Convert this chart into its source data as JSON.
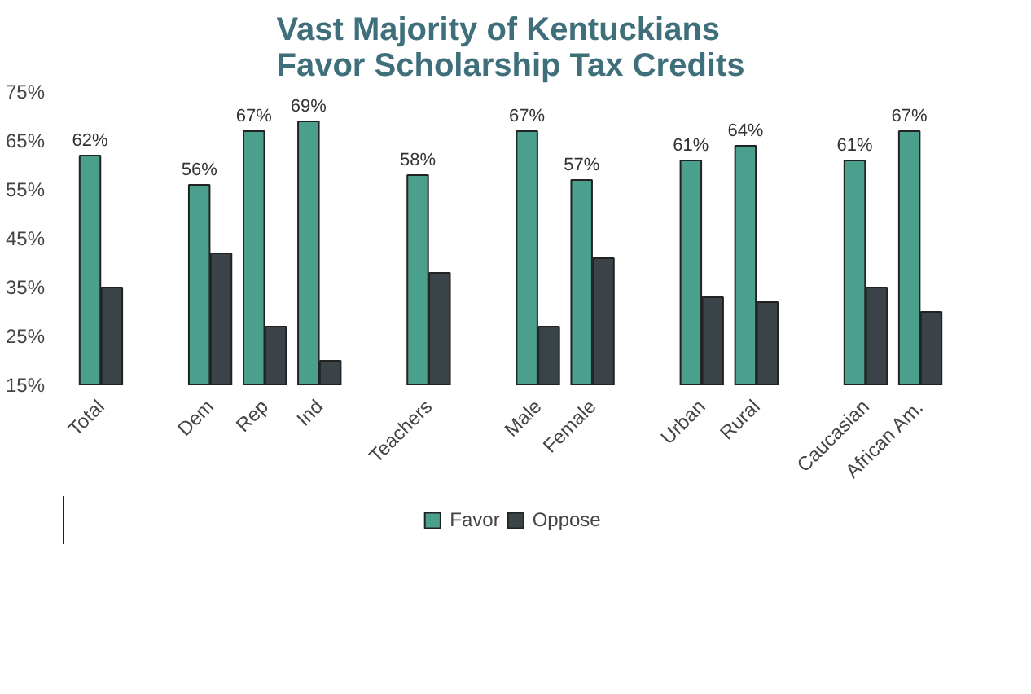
{
  "chart_data": {
    "type": "bar",
    "title": "Vast Majority of Kentuckians Favor Scholarship Tax Credits",
    "categories": [
      "Total",
      null,
      "Dem",
      "Rep",
      "Ind",
      null,
      "Teachers",
      null,
      "Male",
      "Female",
      null,
      "Urban",
      "Rural",
      null,
      "Caucasian",
      "African Am."
    ],
    "series": [
      {
        "name": "Favor",
        "color": "#4aa08c",
        "values": [
          62,
          null,
          56,
          67,
          69,
          null,
          58,
          null,
          67,
          57,
          null,
          61,
          64,
          null,
          61,
          67
        ],
        "value_labels": [
          "62%",
          null,
          "56%",
          "67%",
          "69%",
          null,
          "58%",
          null,
          "67%",
          "57%",
          null,
          "61%",
          "64%",
          null,
          "61%",
          "67%"
        ]
      },
      {
        "name": "Oppose",
        "color": "#3a4448",
        "values": [
          35,
          null,
          42,
          27,
          20,
          null,
          38,
          null,
          27,
          41,
          null,
          33,
          32,
          null,
          35,
          30
        ]
      }
    ],
    "ylim": [
      15,
      75
    ],
    "yticks": [
      {
        "value": 15,
        "label": "15%"
      },
      {
        "value": 25,
        "label": "25%"
      },
      {
        "value": 35,
        "label": "35%"
      },
      {
        "value": 45,
        "label": "45%"
      },
      {
        "value": 55,
        "label": "55%"
      },
      {
        "value": 65,
        "label": "65%"
      },
      {
        "value": 75,
        "label": "75%"
      }
    ],
    "grid": false,
    "legend": "bottom"
  }
}
